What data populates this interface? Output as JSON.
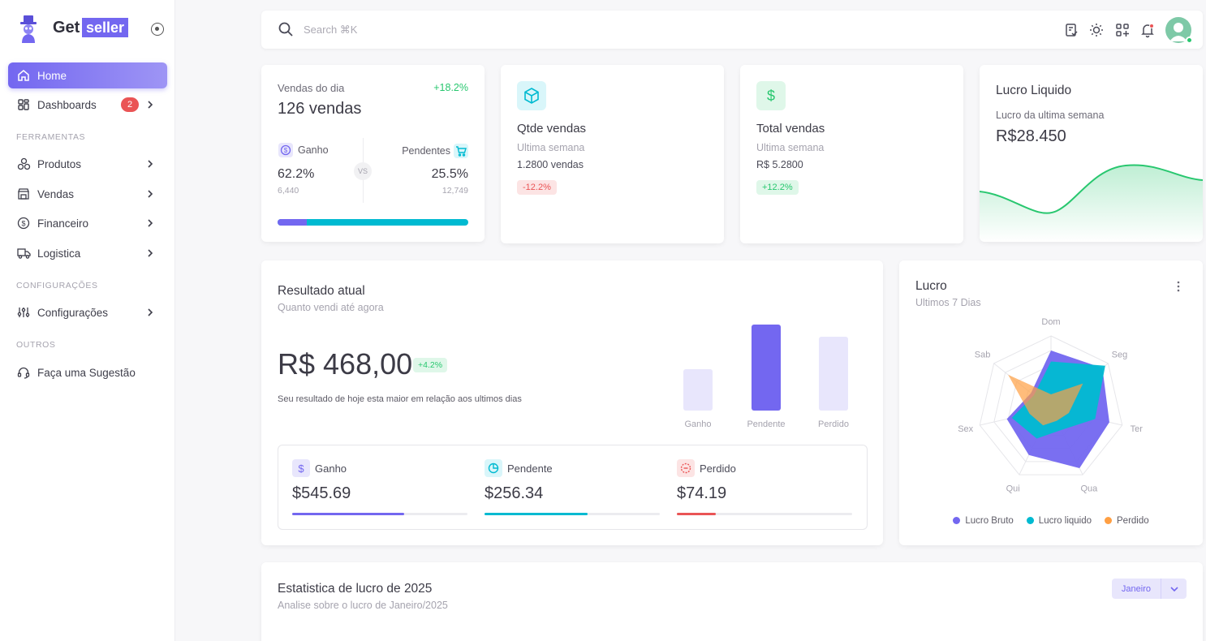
{
  "brand": {
    "get": "Get",
    "seller": "seller"
  },
  "sidebar": {
    "items": [
      {
        "label": "Home"
      },
      {
        "label": "Dashboards",
        "badge": "2"
      },
      {
        "label": "Produtos"
      },
      {
        "label": "Vendas"
      },
      {
        "label": "Financeiro"
      },
      {
        "label": "Logistica"
      },
      {
        "label": "Configurações"
      },
      {
        "label": "Faça uma Sugestão"
      }
    ],
    "sections": [
      "FERRAMENTAS",
      "CONFIGURAÇÕES",
      "OUTROS"
    ]
  },
  "search": {
    "placeholder": "Search ⌘K"
  },
  "colors": {
    "primary": "#7367f0",
    "info": "#00bad1",
    "success": "#28c76f",
    "danger": "#ea5455",
    "warning": "#ff9f43"
  },
  "vendas_dia": {
    "label": "Vendas do dia",
    "growth": "+18.2%",
    "title": "126 vendas",
    "left_label": "Ganho",
    "right_label": "Pendentes",
    "left_pct": "62.2%",
    "right_pct": "25.5%",
    "left_num": "6,440",
    "right_num": "12,749",
    "vs": "VS",
    "progress_fraction": 0.155
  },
  "qtde_vendas": {
    "title": "Qtde vendas",
    "sub": "Ultima semana",
    "value": "1.2800 vendas",
    "badge": "-12.2%"
  },
  "total_vendas": {
    "title": "Total vendas",
    "sub": "Ultima semana",
    "value": "R$ 5.2800",
    "badge": "+12.2%"
  },
  "lucro_liquido": {
    "title": "Lucro Liquido",
    "sub": "Lucro da ultima semana",
    "value": "R$28.450"
  },
  "resultado": {
    "title": "Resultado atual",
    "sub": "Quanto vendi até agora",
    "value": "R$ 468,00",
    "badge": "+4.2%",
    "desc": "Seu resultado de hoje esta maior em relação aos ultimos dias",
    "bars": [
      {
        "label": "Ganho",
        "value": 0.48
      },
      {
        "label": "Pendente",
        "value": 1.0
      },
      {
        "label": "Perdido",
        "value": 0.86
      }
    ],
    "items": [
      {
        "label": "Ganho",
        "value": "$545.69",
        "progress": 0.64
      },
      {
        "label": "Pendente",
        "value": "$256.34",
        "progress": 0.59
      },
      {
        "label": "Perdido",
        "value": "$74.19",
        "progress": 0.22
      }
    ]
  },
  "lucro": {
    "title": "Lucro",
    "sub": "Ultimos 7 Dias",
    "days": [
      "Dom",
      "Seg",
      "Ter",
      "Qua",
      "Qui",
      "Sex",
      "Sab"
    ],
    "legend": [
      "Lucro Bruto",
      "Lucro liquido",
      "Perdido"
    ]
  },
  "estatistica": {
    "title": "Estatistica de lucro de 2025",
    "sub": "Analise sobre o lucro de Janeiro/2025",
    "select": "Janeiro"
  },
  "chart_data": {
    "type": "radar",
    "categories": [
      "Dom",
      "Seg",
      "Ter",
      "Qua",
      "Qui",
      "Sex",
      "Sab"
    ],
    "series": [
      {
        "name": "Lucro Bruto",
        "color": "#7367f0",
        "values": [
          80,
          90,
          82,
          90,
          70,
          62,
          35
        ]
      },
      {
        "name": "Lucro liquido",
        "color": "#00bad1",
        "values": [
          65,
          95,
          62,
          32,
          45,
          55,
          30
        ]
      },
      {
        "name": "Perdido",
        "color": "#ff9f43",
        "values": [
          20,
          56,
          25,
          18,
          25,
          30,
          75
        ]
      }
    ]
  }
}
